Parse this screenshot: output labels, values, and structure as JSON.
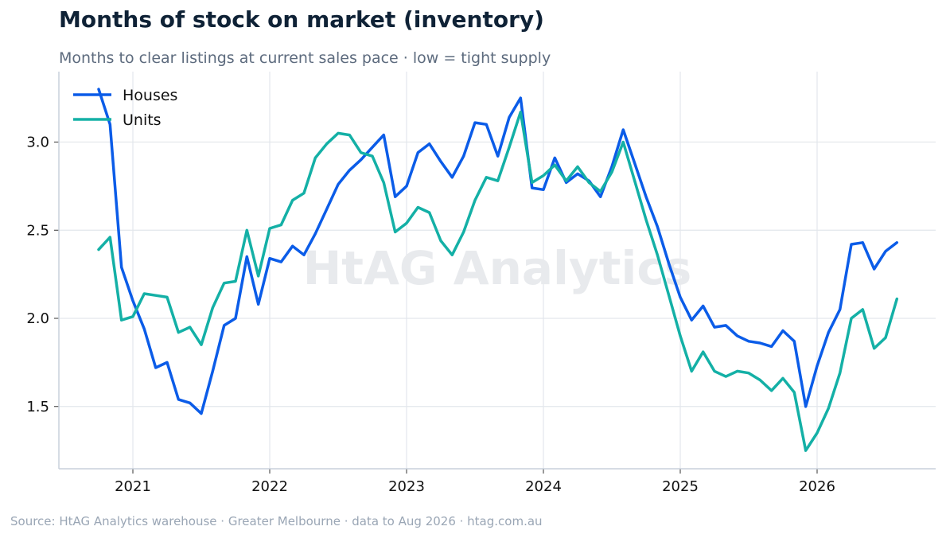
{
  "header": {
    "title": "Months of stock on market (inventory)",
    "subtitle": "Months to clear listings at current sales pace · low = tight supply"
  },
  "watermark": "HtAG Analytics",
  "footer": {
    "source": "Source: HtAG Analytics warehouse  ·  Greater Melbourne  ·  data to Aug 2026  ·  htag.com.au"
  },
  "colors": {
    "houses": "#0b5ce8",
    "units": "#14b0a6",
    "grid": "#e3e7ec",
    "axis": "#c9d1db"
  },
  "chart_data": {
    "type": "line",
    "title": "Months of stock on market (inventory)",
    "subtitle": "Months to clear listings at current sales pace · low = tight supply",
    "xlabel": "",
    "ylabel": "",
    "x_ticks": [
      "2021",
      "2022",
      "2023",
      "2024",
      "2025",
      "2026"
    ],
    "y_ticks": [
      "1.5",
      "2.0",
      "2.5",
      "3.0"
    ],
    "xlim": [
      "2020-06",
      "2026-12"
    ],
    "ylim": [
      1.15,
      3.4
    ],
    "grid": true,
    "legend": "top-left",
    "x": [
      "2020-10",
      "2020-11",
      "2020-12",
      "2021-01",
      "2021-02",
      "2021-03",
      "2021-04",
      "2021-05",
      "2021-06",
      "2021-07",
      "2021-08",
      "2021-09",
      "2021-10",
      "2021-11",
      "2021-12",
      "2022-01",
      "2022-02",
      "2022-03",
      "2022-04",
      "2022-05",
      "2022-06",
      "2022-07",
      "2022-08",
      "2022-09",
      "2022-10",
      "2022-11",
      "2022-12",
      "2023-01",
      "2023-02",
      "2023-03",
      "2023-04",
      "2023-05",
      "2023-06",
      "2023-07",
      "2023-08",
      "2023-09",
      "2023-10",
      "2023-11",
      "2023-12",
      "2024-01",
      "2024-02",
      "2024-03",
      "2024-04",
      "2024-05",
      "2024-06",
      "2024-07",
      "2024-08",
      "2024-09",
      "2024-10",
      "2024-11",
      "2024-12",
      "2025-01",
      "2025-02",
      "2025-03",
      "2025-04",
      "2025-05",
      "2025-06",
      "2025-07",
      "2025-08",
      "2025-09",
      "2025-10",
      "2025-11",
      "2025-12",
      "2026-01",
      "2026-02",
      "2026-03",
      "2026-04",
      "2026-05",
      "2026-06",
      "2026-07",
      "2026-08"
    ],
    "series": [
      {
        "name": "Houses",
        "values": [
          3.3,
          3.1,
          2.29,
          2.1,
          1.94,
          1.72,
          1.75,
          1.54,
          1.52,
          1.46,
          1.7,
          1.96,
          2.0,
          2.35,
          2.08,
          2.34,
          2.32,
          2.41,
          2.36,
          2.48,
          2.62,
          2.76,
          2.84,
          2.9,
          2.97,
          3.04,
          2.69,
          2.75,
          2.94,
          2.99,
          2.89,
          2.8,
          2.92,
          3.11,
          3.1,
          2.92,
          3.14,
          3.25,
          2.74,
          2.73,
          2.91,
          2.77,
          2.82,
          2.78,
          2.69,
          2.86,
          3.07,
          2.88,
          2.69,
          2.52,
          2.31,
          2.12,
          1.99,
          2.07,
          1.95,
          1.96,
          1.9,
          1.87,
          1.86,
          1.84,
          1.93,
          1.87,
          1.5,
          1.73,
          1.92,
          2.05,
          2.42,
          2.43,
          2.28,
          2.38,
          2.43
        ]
      },
      {
        "name": "Units",
        "values": [
          2.39,
          2.46,
          1.99,
          2.01,
          2.14,
          2.13,
          2.12,
          1.92,
          1.95,
          1.85,
          2.06,
          2.2,
          2.21,
          2.5,
          2.24,
          2.51,
          2.53,
          2.67,
          2.71,
          2.91,
          2.99,
          3.05,
          3.04,
          2.94,
          2.92,
          2.77,
          2.49,
          2.54,
          2.63,
          2.6,
          2.44,
          2.36,
          2.49,
          2.67,
          2.8,
          2.78,
          2.97,
          3.17,
          2.77,
          2.81,
          2.87,
          2.78,
          2.86,
          2.77,
          2.72,
          2.83,
          3.0,
          2.78,
          2.56,
          2.36,
          2.13,
          1.9,
          1.7,
          1.81,
          1.7,
          1.67,
          1.7,
          1.69,
          1.65,
          1.59,
          1.66,
          1.58,
          1.25,
          1.35,
          1.49,
          1.69,
          2.0,
          2.05,
          1.83,
          1.89,
          2.11
        ]
      }
    ]
  }
}
